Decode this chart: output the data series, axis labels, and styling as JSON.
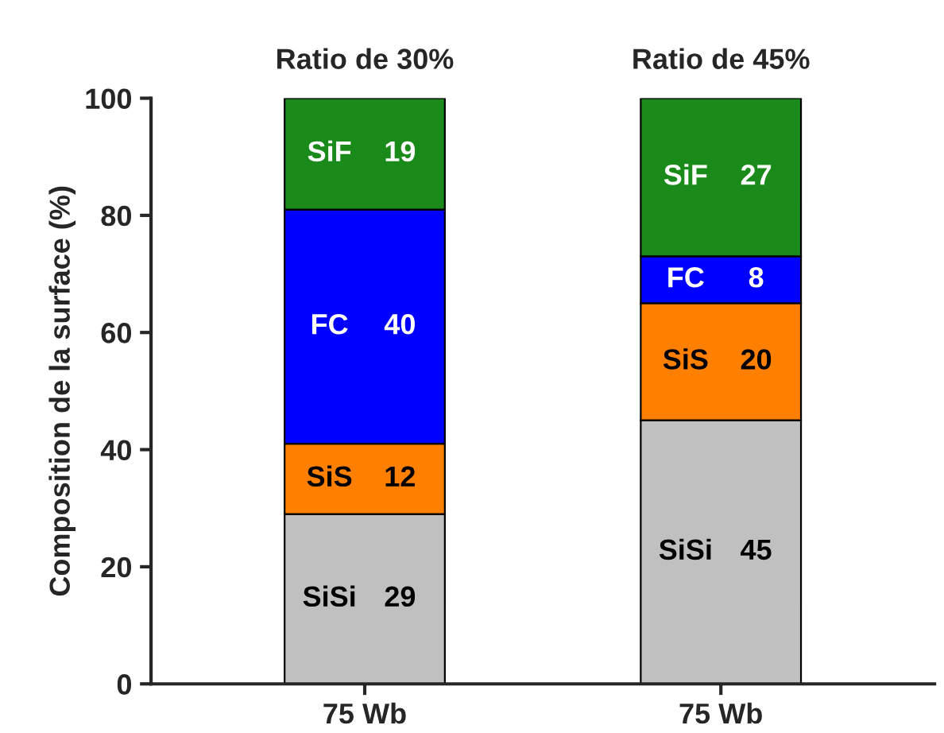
{
  "chart_data": {
    "type": "bar",
    "stacked": true,
    "ylabel": "Composition de la surface (%)",
    "categories": [
      "75 Wb",
      "75 Wb"
    ],
    "series": [
      {
        "name": "SiSi",
        "color": "#c0c0c0",
        "values": [
          29,
          45
        ]
      },
      {
        "name": "SiS",
        "color": "#ff8000",
        "values": [
          12,
          20
        ]
      },
      {
        "name": "FC",
        "color": "#0000ff",
        "values": [
          40,
          8
        ]
      },
      {
        "name": "SiF",
        "color": "#1a8a1a",
        "values": [
          19,
          27
        ]
      }
    ],
    "annotations": [
      "Ratio de 30%",
      "Ratio de 45%"
    ],
    "ylim": [
      0,
      100
    ],
    "yticks": [
      0,
      20,
      40,
      60,
      80,
      100
    ],
    "data_labels": true,
    "grid": false,
    "legend": false
  }
}
